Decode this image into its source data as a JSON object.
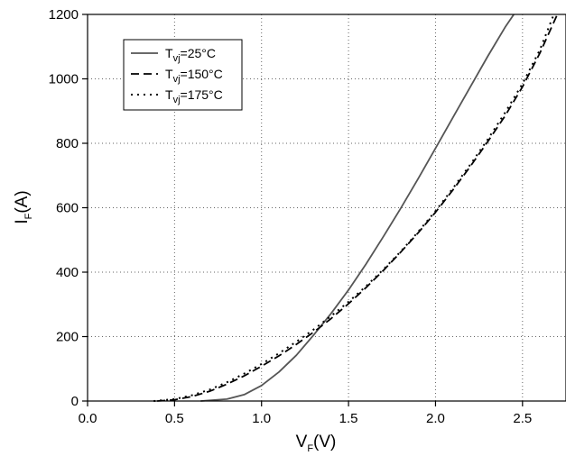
{
  "chart_data": {
    "type": "line",
    "title": "",
    "xlabel": {
      "main": "V",
      "sub": "F",
      "unit": "(V)"
    },
    "ylabel": {
      "main": "I",
      "sub": "F",
      "unit": "(A)"
    },
    "xlim": [
      0,
      2.75
    ],
    "ylim": [
      0,
      1200
    ],
    "x_ticks": [
      0.0,
      0.5,
      1.0,
      1.5,
      2.0,
      2.5
    ],
    "x_tick_labels": [
      "0.0",
      "0.5",
      "1.0",
      "1.5",
      "2.0",
      "2.5"
    ],
    "y_ticks": [
      0,
      200,
      400,
      600,
      800,
      1000,
      1200
    ],
    "y_tick_labels": [
      "0",
      "200",
      "400",
      "600",
      "800",
      "1000",
      "1200"
    ],
    "grid": true,
    "legend_position": "top-left",
    "series": [
      {
        "name": {
          "main": "T",
          "sub": "vj",
          "rest": "=25°C"
        },
        "style": "solid",
        "color": "#555555",
        "x": [
          0.65,
          0.8,
          0.9,
          1.0,
          1.1,
          1.2,
          1.3,
          1.4,
          1.5,
          1.6,
          1.7,
          1.8,
          1.9,
          2.0,
          2.1,
          2.2,
          2.3,
          2.4,
          2.45
        ],
        "y": [
          0,
          6,
          20,
          48,
          90,
          142,
          205,
          272,
          345,
          425,
          510,
          598,
          690,
          785,
          880,
          975,
          1070,
          1160,
          1200
        ]
      },
      {
        "name": {
          "main": "T",
          "sub": "vj",
          "rest": "=150°C"
        },
        "style": "dashed",
        "color": "#000000",
        "x": [
          0.4,
          0.5,
          0.6,
          0.7,
          0.8,
          0.9,
          1.0,
          1.1,
          1.2,
          1.3,
          1.4,
          1.5,
          1.6,
          1.7,
          1.8,
          1.9,
          2.0,
          2.1,
          2.2,
          2.3,
          2.4,
          2.5,
          2.6,
          2.7
        ],
        "y": [
          0,
          4,
          14,
          30,
          52,
          78,
          108,
          140,
          176,
          214,
          256,
          302,
          352,
          405,
          462,
          522,
          586,
          655,
          728,
          805,
          885,
          975,
          1080,
          1200
        ]
      },
      {
        "name": {
          "main": "T",
          "sub": "vj",
          "rest": "=175°C"
        },
        "style": "dotted",
        "color": "#000000",
        "x": [
          0.38,
          0.5,
          0.6,
          0.7,
          0.8,
          0.9,
          1.0,
          1.1,
          1.2,
          1.3,
          1.4,
          1.5,
          1.6,
          1.7,
          1.8,
          1.9,
          2.0,
          2.1,
          2.2,
          2.3,
          2.4,
          2.5,
          2.6,
          2.68
        ],
        "y": [
          0,
          6,
          18,
          35,
          58,
          85,
          115,
          148,
          184,
          222,
          264,
          308,
          356,
          408,
          464,
          525,
          590,
          660,
          734,
          812,
          895,
          985,
          1090,
          1200
        ]
      }
    ]
  }
}
